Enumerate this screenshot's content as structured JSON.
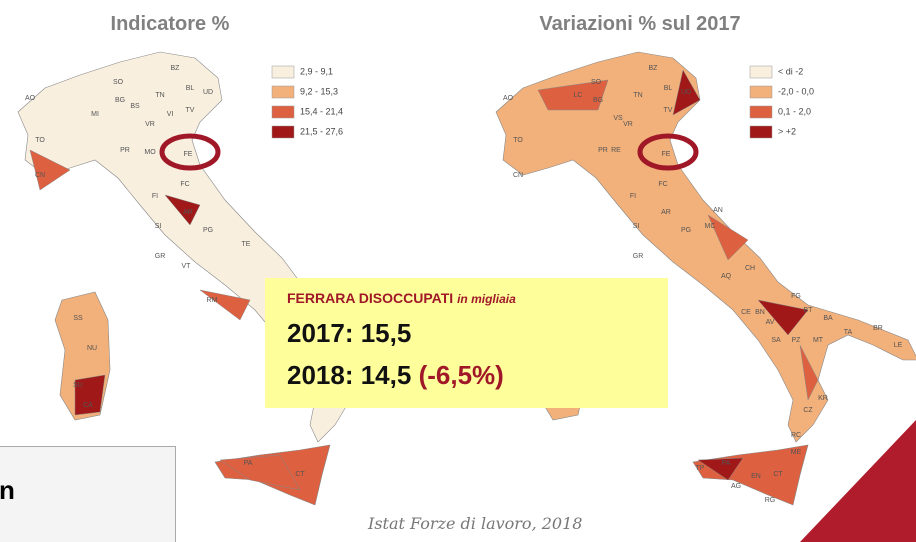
{
  "left_map": {
    "title": "Indicatore %",
    "legend": [
      {
        "label": "2,9 - 9,1",
        "color": "#f8efdf"
      },
      {
        "label": "9,2 - 15,3",
        "color": "#f2b07a"
      },
      {
        "label": "15,4 - 21,4",
        "color": "#dd6040"
      },
      {
        "label": "21,5 - 27,6",
        "color": "#a01818"
      }
    ],
    "labels": [
      "BZ",
      "TN",
      "BL",
      "UD",
      "SO",
      "BG",
      "BS",
      "VR",
      "VI",
      "TV",
      "MI",
      "AO",
      "TO",
      "CN",
      "PR",
      "MO",
      "FE",
      "FC",
      "FI",
      "AR",
      "SI",
      "PG",
      "GR",
      "VT",
      "RM",
      "TE",
      "SS",
      "NU",
      "SU",
      "CA",
      "PA",
      "CT"
    ]
  },
  "right_map": {
    "title": "Variazioni % sul 2017",
    "legend": [
      {
        "label": "< di -2",
        "color": "#f8efdf"
      },
      {
        "label": "-2,0 - 0,0",
        "color": "#f2b07a"
      },
      {
        "label": "0,1 - 2,0",
        "color": "#dd6040"
      },
      {
        "label": "> +2",
        "color": "#a01818"
      }
    ],
    "labels": [
      "BZ",
      "TN",
      "BL",
      "UD",
      "SO",
      "BG",
      "VS",
      "VR",
      "TV",
      "LC",
      "AO",
      "TO",
      "CN",
      "PR",
      "RE",
      "FE",
      "FC",
      "FI",
      "AR",
      "SI",
      "PG",
      "GR",
      "MC",
      "AN",
      "AQ",
      "CH",
      "FG",
      "BA",
      "BT",
      "TA",
      "BR",
      "LE",
      "CE",
      "BN",
      "AV",
      "SA",
      "PZ",
      "MT",
      "KR",
      "CZ",
      "RC",
      "ME",
      "TP",
      "PA",
      "EN",
      "CT",
      "AG",
      "RG"
    ]
  },
  "highlight": {
    "title": "FERRARA DISOCCUPATI",
    "unit": "in migliaia",
    "line_2017": "2017: 15,5",
    "line_2018": "2018: 14,5",
    "change": "(-6,5%)"
  },
  "source": "Istat Forze di lavoro, 2018",
  "side_box": {
    "text": "n"
  }
}
